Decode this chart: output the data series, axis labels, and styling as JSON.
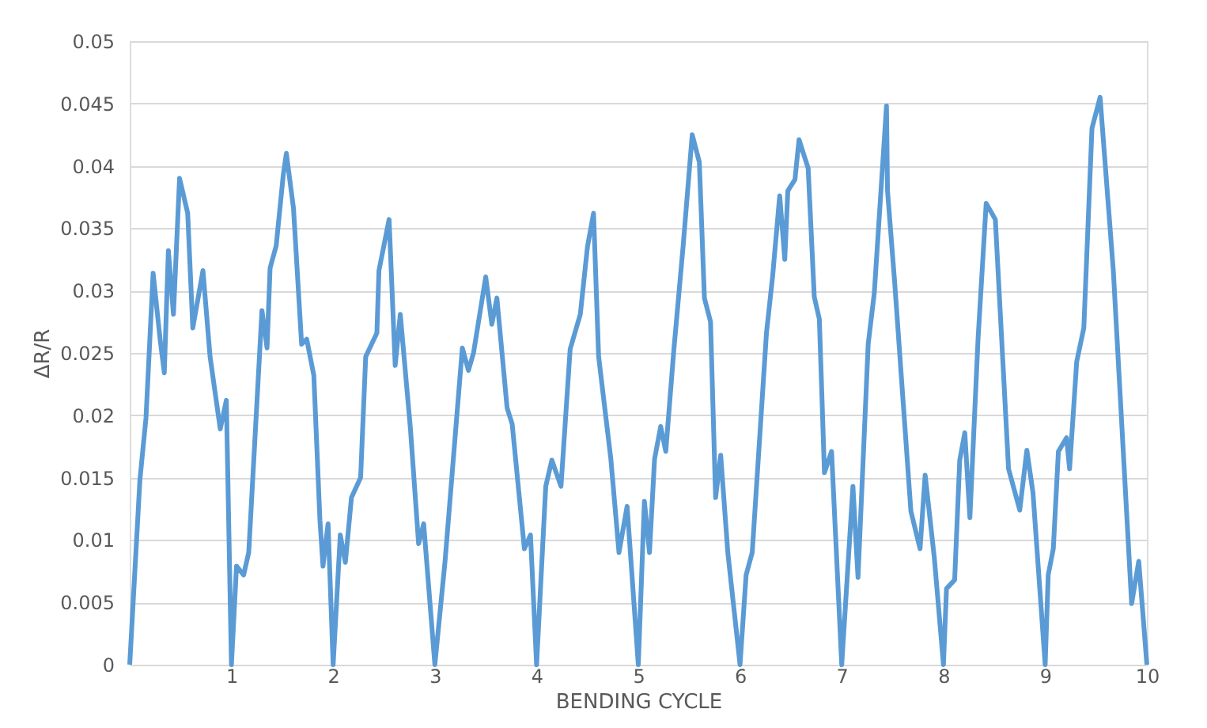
{
  "chart_data": {
    "type": "line",
    "xlabel": "BENDING CYCLE",
    "ylabel": "ΔR/R",
    "xlim": [
      0,
      10
    ],
    "xticks": [
      1,
      2,
      3,
      4,
      5,
      6,
      7,
      8,
      9,
      10
    ],
    "ylim": [
      0,
      0.05
    ],
    "yticks": [
      0,
      0.005,
      0.01,
      0.015,
      0.02,
      0.025,
      0.03,
      0.035,
      0.04,
      0.045,
      0.05
    ],
    "grid": "y",
    "marker": "none",
    "line_style": "solid",
    "series": [
      {
        "color": "#5b9bd5",
        "x": [
          0,
          0.1,
          0.16,
          0.23,
          0.3,
          0.34,
          0.38,
          0.43,
          0.49,
          0.57,
          0.62,
          0.72,
          0.79,
          0.89,
          0.95,
          1.0,
          1.05,
          1.12,
          1.17,
          1.3,
          1.35,
          1.38,
          1.44,
          1.51,
          1.54,
          1.61,
          1.69,
          1.74,
          1.81,
          1.87,
          1.9,
          1.95,
          2.0,
          2.07,
          2.12,
          2.18,
          2.27,
          2.32,
          2.43,
          2.45,
          2.55,
          2.61,
          2.66,
          2.76,
          2.84,
          2.89,
          3.0,
          3.1,
          3.27,
          3.33,
          3.38,
          3.5,
          3.56,
          3.61,
          3.71,
          3.76,
          3.88,
          3.94,
          4.0,
          4.09,
          4.15,
          4.24,
          4.33,
          4.43,
          4.5,
          4.56,
          4.61,
          4.73,
          4.81,
          4.89,
          5.0,
          5.06,
          5.11,
          5.16,
          5.22,
          5.27,
          5.35,
          5.44,
          5.53,
          5.6,
          5.65,
          5.71,
          5.76,
          5.81,
          5.88,
          6.0,
          6.06,
          6.12,
          6.26,
          6.32,
          6.39,
          6.44,
          6.47,
          6.54,
          6.58,
          6.67,
          6.73,
          6.78,
          6.83,
          6.9,
          7.0,
          7.11,
          7.16,
          7.26,
          7.32,
          7.44,
          7.45,
          7.52,
          7.68,
          7.77,
          7.82,
          7.91,
          8.0,
          8.03,
          8.11,
          8.16,
          8.21,
          8.26,
          8.34,
          8.42,
          8.51,
          8.64,
          8.75,
          8.82,
          8.88,
          9.0,
          9.03,
          9.08,
          9.13,
          9.21,
          9.24,
          9.31,
          9.38,
          9.46,
          9.54,
          9.67,
          9.85,
          9.92,
          10
        ],
        "values": [
          0,
          0.0148,
          0.0198,
          0.0314,
          0.026,
          0.0234,
          0.0332,
          0.0281,
          0.039,
          0.0362,
          0.027,
          0.0316,
          0.0247,
          0.0189,
          0.0212,
          0,
          0.0079,
          0.0072,
          0.009,
          0.0284,
          0.0254,
          0.0318,
          0.0336,
          0.0393,
          0.041,
          0.0366,
          0.0257,
          0.0261,
          0.0232,
          0.0116,
          0.0079,
          0.0113,
          0,
          0.0104,
          0.0082,
          0.0134,
          0.015,
          0.0247,
          0.0266,
          0.0316,
          0.0357,
          0.024,
          0.0281,
          0.0189,
          0.0097,
          0.0113,
          0,
          0.0083,
          0.0254,
          0.0236,
          0.025,
          0.0311,
          0.0273,
          0.0294,
          0.0206,
          0.0193,
          0.0093,
          0.0104,
          0,
          0.0143,
          0.0164,
          0.0143,
          0.0253,
          0.0281,
          0.0335,
          0.0362,
          0.0247,
          0.0165,
          0.009,
          0.0127,
          0,
          0.0131,
          0.009,
          0.0165,
          0.0191,
          0.0171,
          0.0253,
          0.0335,
          0.0425,
          0.0403,
          0.0294,
          0.0275,
          0.0134,
          0.0168,
          0.009,
          0,
          0.0072,
          0.009,
          0.0266,
          0.0311,
          0.0376,
          0.0325,
          0.038,
          0.0389,
          0.0421,
          0.0398,
          0.0295,
          0.0277,
          0.0154,
          0.0171,
          0,
          0.0143,
          0.007,
          0.0257,
          0.0298,
          0.0448,
          0.038,
          0.0307,
          0.0123,
          0.0093,
          0.0152,
          0.0086,
          0,
          0.0061,
          0.0068,
          0.0164,
          0.0186,
          0.0118,
          0.0261,
          0.037,
          0.0357,
          0.0157,
          0.0124,
          0.0172,
          0.0138,
          0,
          0.0072,
          0.0093,
          0.0171,
          0.0182,
          0.0157,
          0.0243,
          0.027,
          0.043,
          0.0455,
          0.0316,
          0.0049,
          0.0083,
          0
        ]
      }
    ]
  }
}
